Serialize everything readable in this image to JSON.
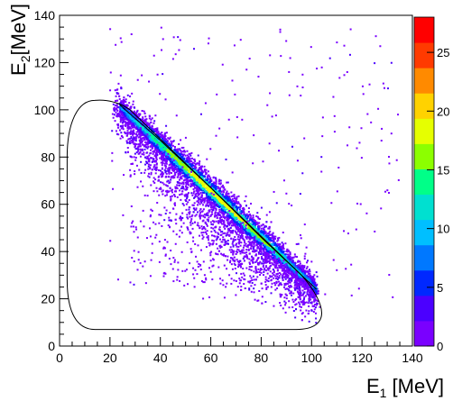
{
  "chart_data": {
    "type": "heatmap",
    "subtype": "2d-histogram-scatter",
    "xlabel": {
      "main": "E",
      "sub": "1",
      "unit": " [MeV]"
    },
    "ylabel": {
      "main": "E",
      "sub": "2",
      "unit": "[MeV]"
    },
    "xlim": [
      0,
      140
    ],
    "ylim": [
      0,
      140
    ],
    "x_ticks": [
      0,
      20,
      40,
      60,
      80,
      100,
      120,
      140
    ],
    "y_ticks": [
      0,
      20,
      40,
      60,
      80,
      100,
      120,
      140
    ],
    "x_tick_labels": [
      "0",
      "20",
      "40",
      "60",
      "80",
      "100",
      "120",
      "140"
    ],
    "y_tick_labels": [
      "0",
      "20",
      "40",
      "60",
      "80",
      "100",
      "120",
      "140"
    ],
    "z_range": [
      0,
      28
    ],
    "z_ticks": [
      0,
      5,
      10,
      15,
      20,
      25
    ],
    "z_tick_labels": [
      "0",
      "5",
      "10",
      "15",
      "20",
      "25"
    ],
    "palette": "rainbow (purple-blue-cyan-green-yellow-orange-red)",
    "grid": false,
    "density_ridge": {
      "description": "main density band along E1 + E2 ≈ 125 MeV",
      "x": [
        22,
        40,
        60,
        80,
        100
      ],
      "y": [
        103,
        87,
        67,
        47,
        27
      ]
    },
    "curves": [
      {
        "label": "thin black line along ridge",
        "x": [
          24,
          40,
          60,
          80,
          102
        ],
        "y": [
          102,
          87,
          67,
          46,
          24
        ]
      },
      {
        "label": "closed contour",
        "x": [
          14,
          25,
          60,
          100,
          104,
          101,
          10,
          3,
          5,
          14
        ],
        "y": [
          104,
          102,
          67,
          24,
          15,
          8,
          8,
          30,
          80,
          104
        ]
      }
    ],
    "outliers": {
      "description": "sparse points scattered across 20–135 MeV in both axes"
    }
  },
  "palette_colors": [
    "#7a00ff",
    "#4b00ff",
    "#0028ff",
    "#0078ff",
    "#00bfff",
    "#00e0d0",
    "#00ff88",
    "#8cff00",
    "#e6ff00",
    "#ffd200",
    "#ff8a00",
    "#ff3a00",
    "#ff0000"
  ]
}
